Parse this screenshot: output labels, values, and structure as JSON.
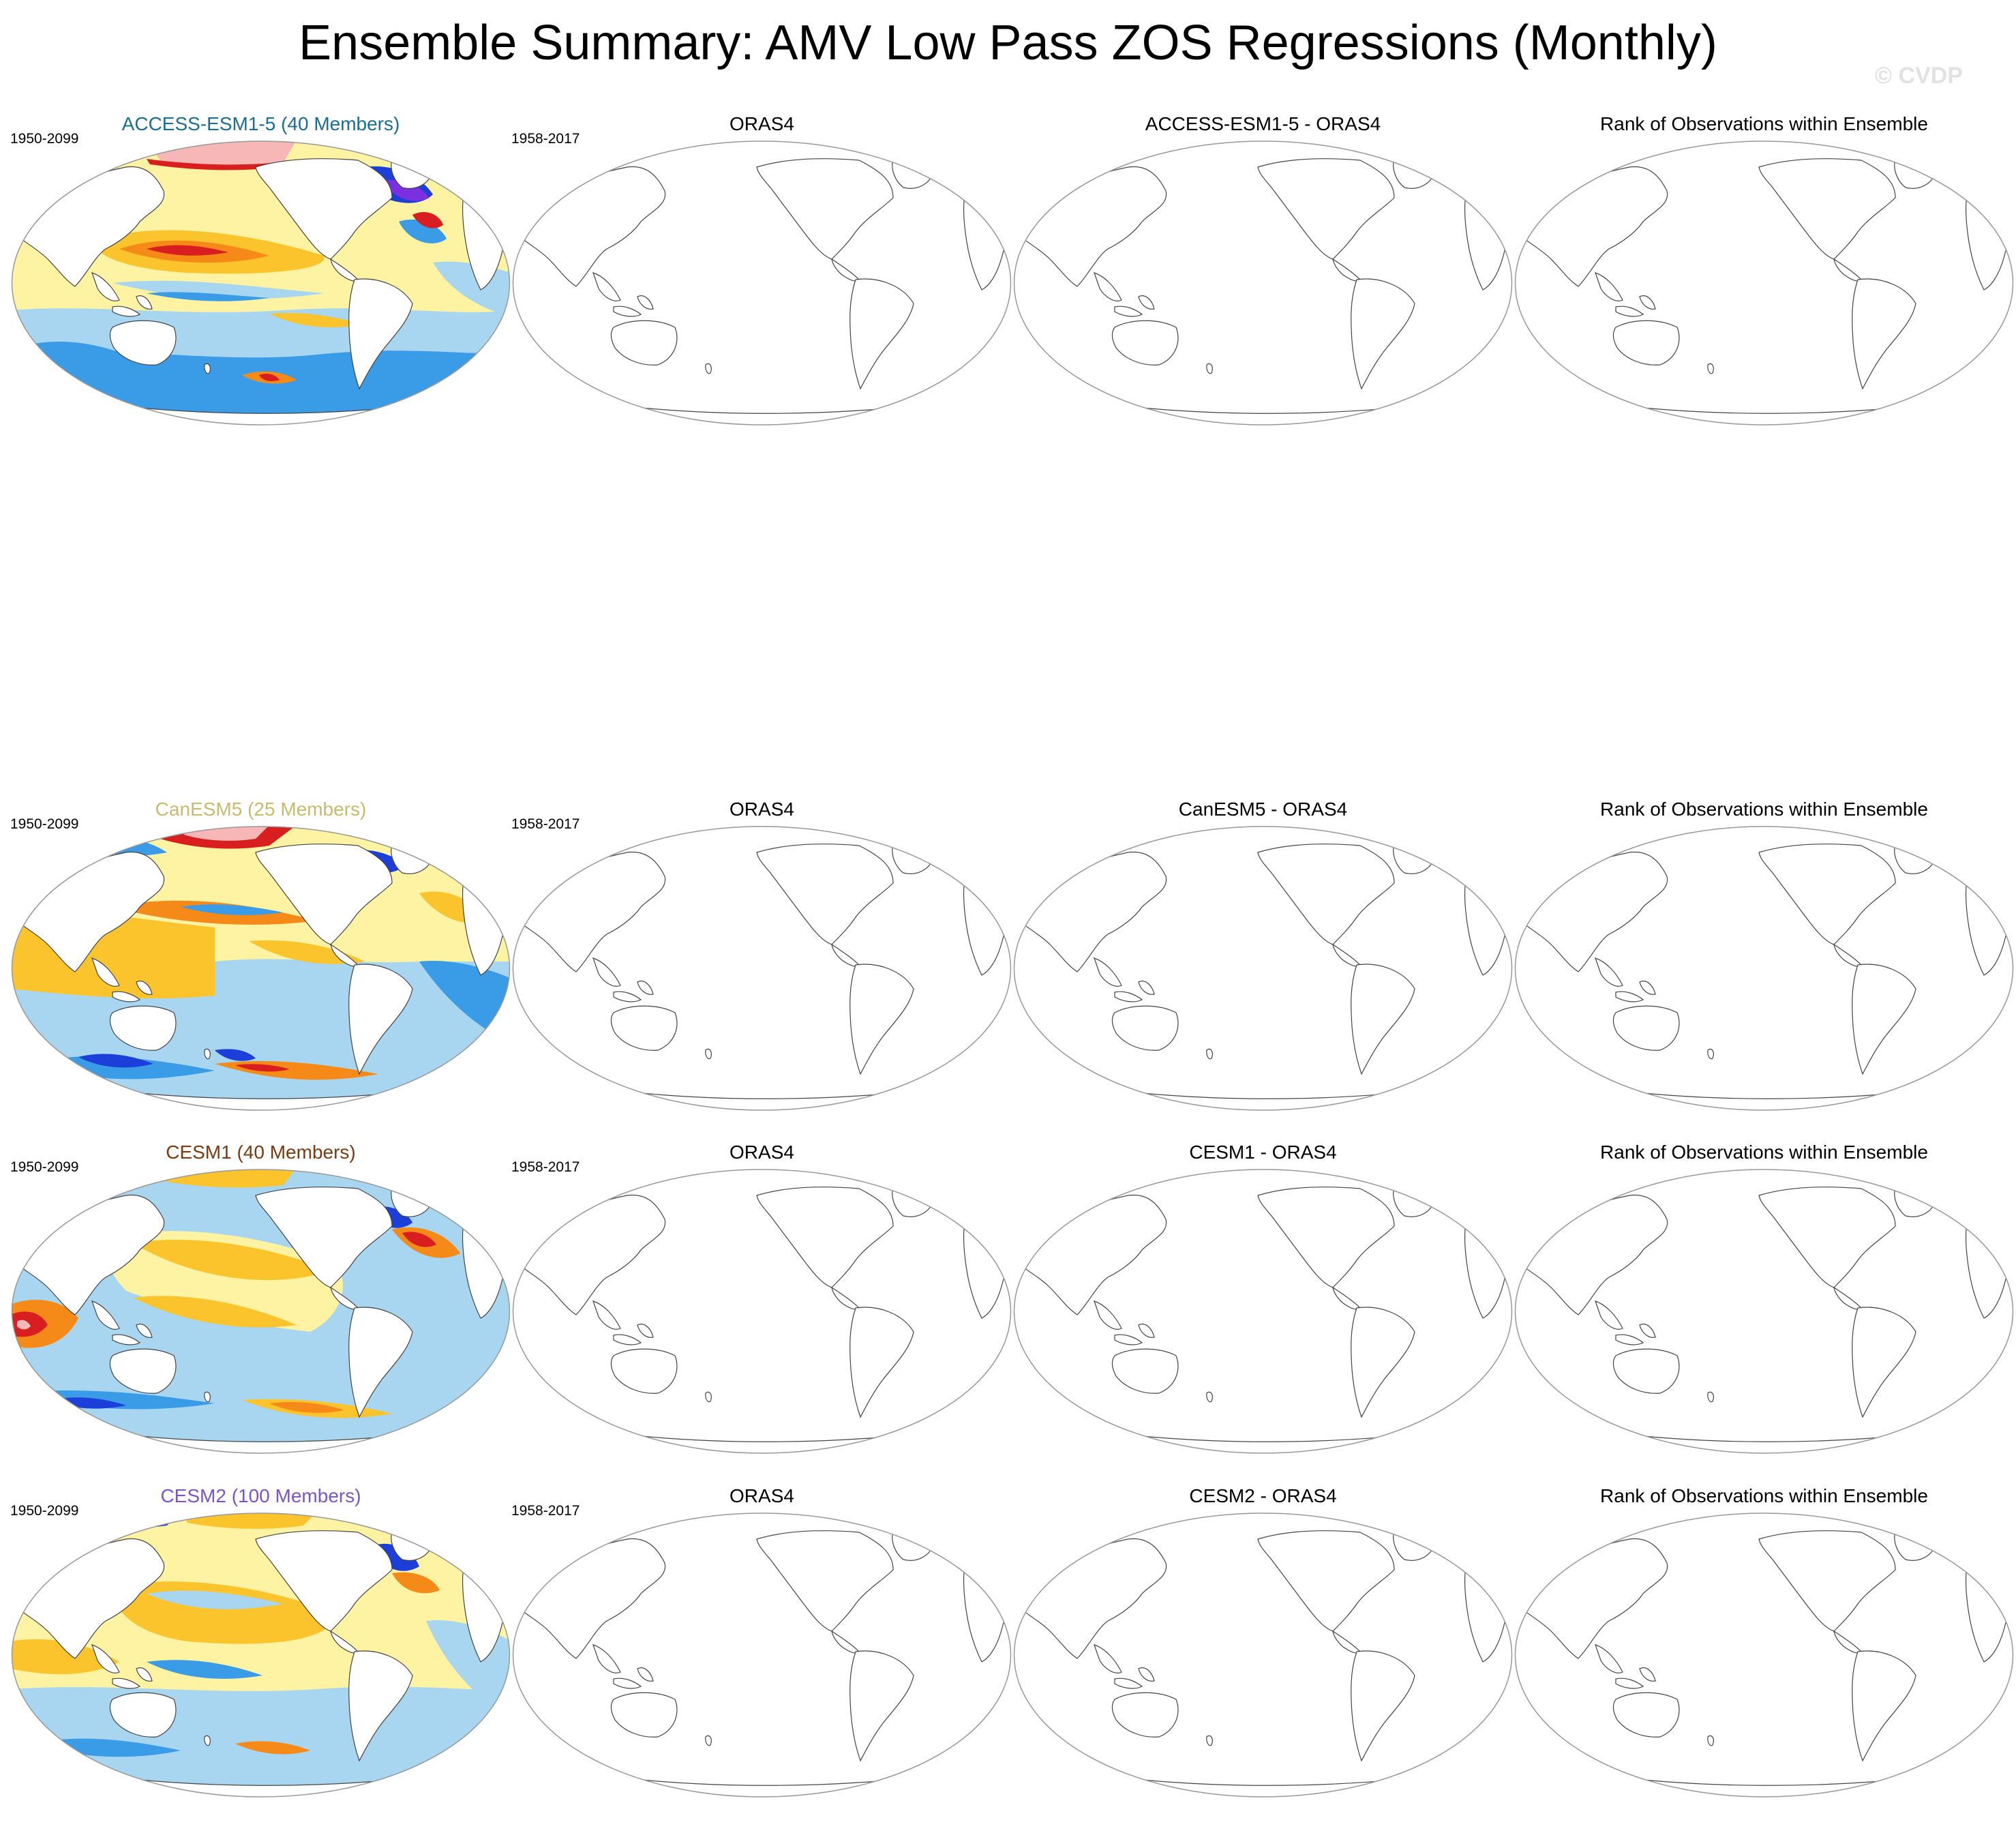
{
  "title": "Ensemble Summary: AMV Low Pass ZOS Regressions (Monthly)",
  "watermark": "© CVDP",
  "rows": [
    {
      "model_title": "ACCESS-ESM1-5 (40 Members)",
      "model_title_color": "#1a6e94",
      "model_period": "1950-2099",
      "obs_title": "ORAS4",
      "obs_period": "1958-2017",
      "diff_title": "ACCESS-ESM1-5 - ORAS4",
      "rank_title": "Rank of Observations within Ensemble"
    },
    {
      "model_title": "CanESM5 (25 Members)",
      "model_title_color": "#c9bb6e",
      "model_period": "1950-2099",
      "obs_title": "ORAS4",
      "obs_period": "1958-2017",
      "diff_title": "CanESM5 - ORAS4",
      "rank_title": "Rank of Observations within Ensemble"
    },
    {
      "model_title": "CESM1 (40 Members)",
      "model_title_color": "#7a3b10",
      "model_period": "1950-2099",
      "obs_title": "ORAS4",
      "obs_period": "1958-2017",
      "diff_title": "CESM1 - ORAS4",
      "rank_title": "Rank of Observations within Ensemble"
    },
    {
      "model_title": "CESM2 (100 Members)",
      "model_title_color": "#7b55c8",
      "model_period": "1950-2099",
      "obs_title": "ORAS4",
      "obs_period": "1958-2017",
      "diff_title": "CESM2 - ORAS4",
      "rank_title": "Rank of Observations within Ensemble"
    }
  ],
  "colors": {
    "strong_neg": "#1b3fd8",
    "very_strong_neg": "#7a2fe0",
    "neg": "#3a9be6",
    "weak_neg": "#a8d6f0",
    "weak_pos": "#fdf3a2",
    "pos": "#fbc42c",
    "strong_pos": "#f58a18",
    "very_strong_pos": "#d81e1e",
    "extreme_pos": "#f7b7b7",
    "coast": "#444444",
    "frame": "#999999"
  }
}
